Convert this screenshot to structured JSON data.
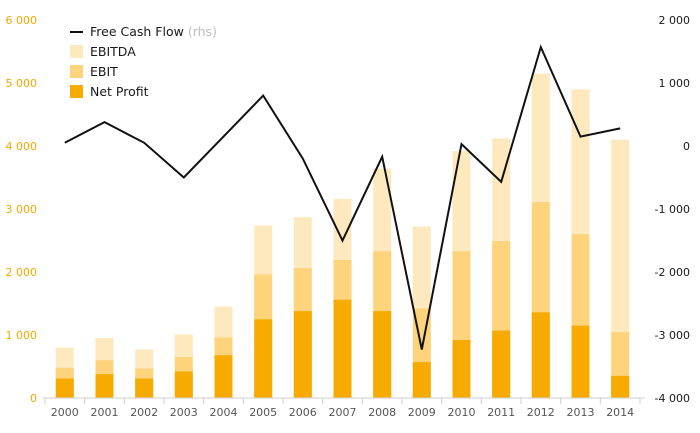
{
  "chart_data": {
    "type": "bar",
    "categories": [
      "2000",
      "2001",
      "2002",
      "2003",
      "2004",
      "2005",
      "2006",
      "2007",
      "2008",
      "2009",
      "2010",
      "2011",
      "2012",
      "2013",
      "2014"
    ],
    "bar_mode": "overlapping",
    "series": [
      {
        "name": "EBITDA",
        "color": "#fde9bd",
        "axis": "left",
        "values": [
          800,
          950,
          770,
          1010,
          1450,
          2740,
          2870,
          3160,
          3640,
          2720,
          3920,
          4120,
          5150,
          4900,
          4100
        ]
      },
      {
        "name": "EBIT",
        "color": "#fdd37c",
        "axis": "left",
        "values": [
          480,
          600,
          470,
          650,
          960,
          1960,
          2060,
          2190,
          2330,
          1420,
          2330,
          2490,
          3110,
          2600,
          1050
        ]
      },
      {
        "name": "Net Profit",
        "color": "#f7ab00",
        "axis": "left",
        "values": [
          310,
          380,
          310,
          420,
          680,
          1250,
          1380,
          1560,
          1380,
          570,
          920,
          1070,
          1360,
          1150,
          350
        ]
      },
      {
        "name": "Free Cash Flow",
        "suffix": "(rhs)",
        "type": "line",
        "color": "#111111",
        "axis": "right",
        "values": [
          50,
          380,
          50,
          -500,
          150,
          800,
          -200,
          -1500,
          -170,
          -3230,
          30,
          -570,
          1570,
          150,
          280
        ]
      }
    ],
    "y_left": {
      "ylim": [
        0,
        6000
      ],
      "ticks": [
        0,
        1000,
        2000,
        3000,
        4000,
        5000,
        6000
      ],
      "tick_labels": [
        "0",
        "1 000",
        "2 000",
        "3 000",
        "4 000",
        "5 000",
        "6 000"
      ]
    },
    "y_right": {
      "ylim": [
        -4000,
        2000
      ],
      "ticks": [
        -4000,
        -3000,
        -2000,
        -1000,
        0,
        1000,
        2000
      ],
      "tick_labels": [
        "-4 000",
        "-3 000",
        "-2 000",
        "-1 000",
        "0",
        "1 000",
        "2 000"
      ]
    },
    "legend": {
      "position": "top-left",
      "order": [
        "Free Cash Flow",
        "EBITDA",
        "EBIT",
        "Net Profit"
      ]
    },
    "title": "",
    "xlabel": "",
    "grid": false
  }
}
